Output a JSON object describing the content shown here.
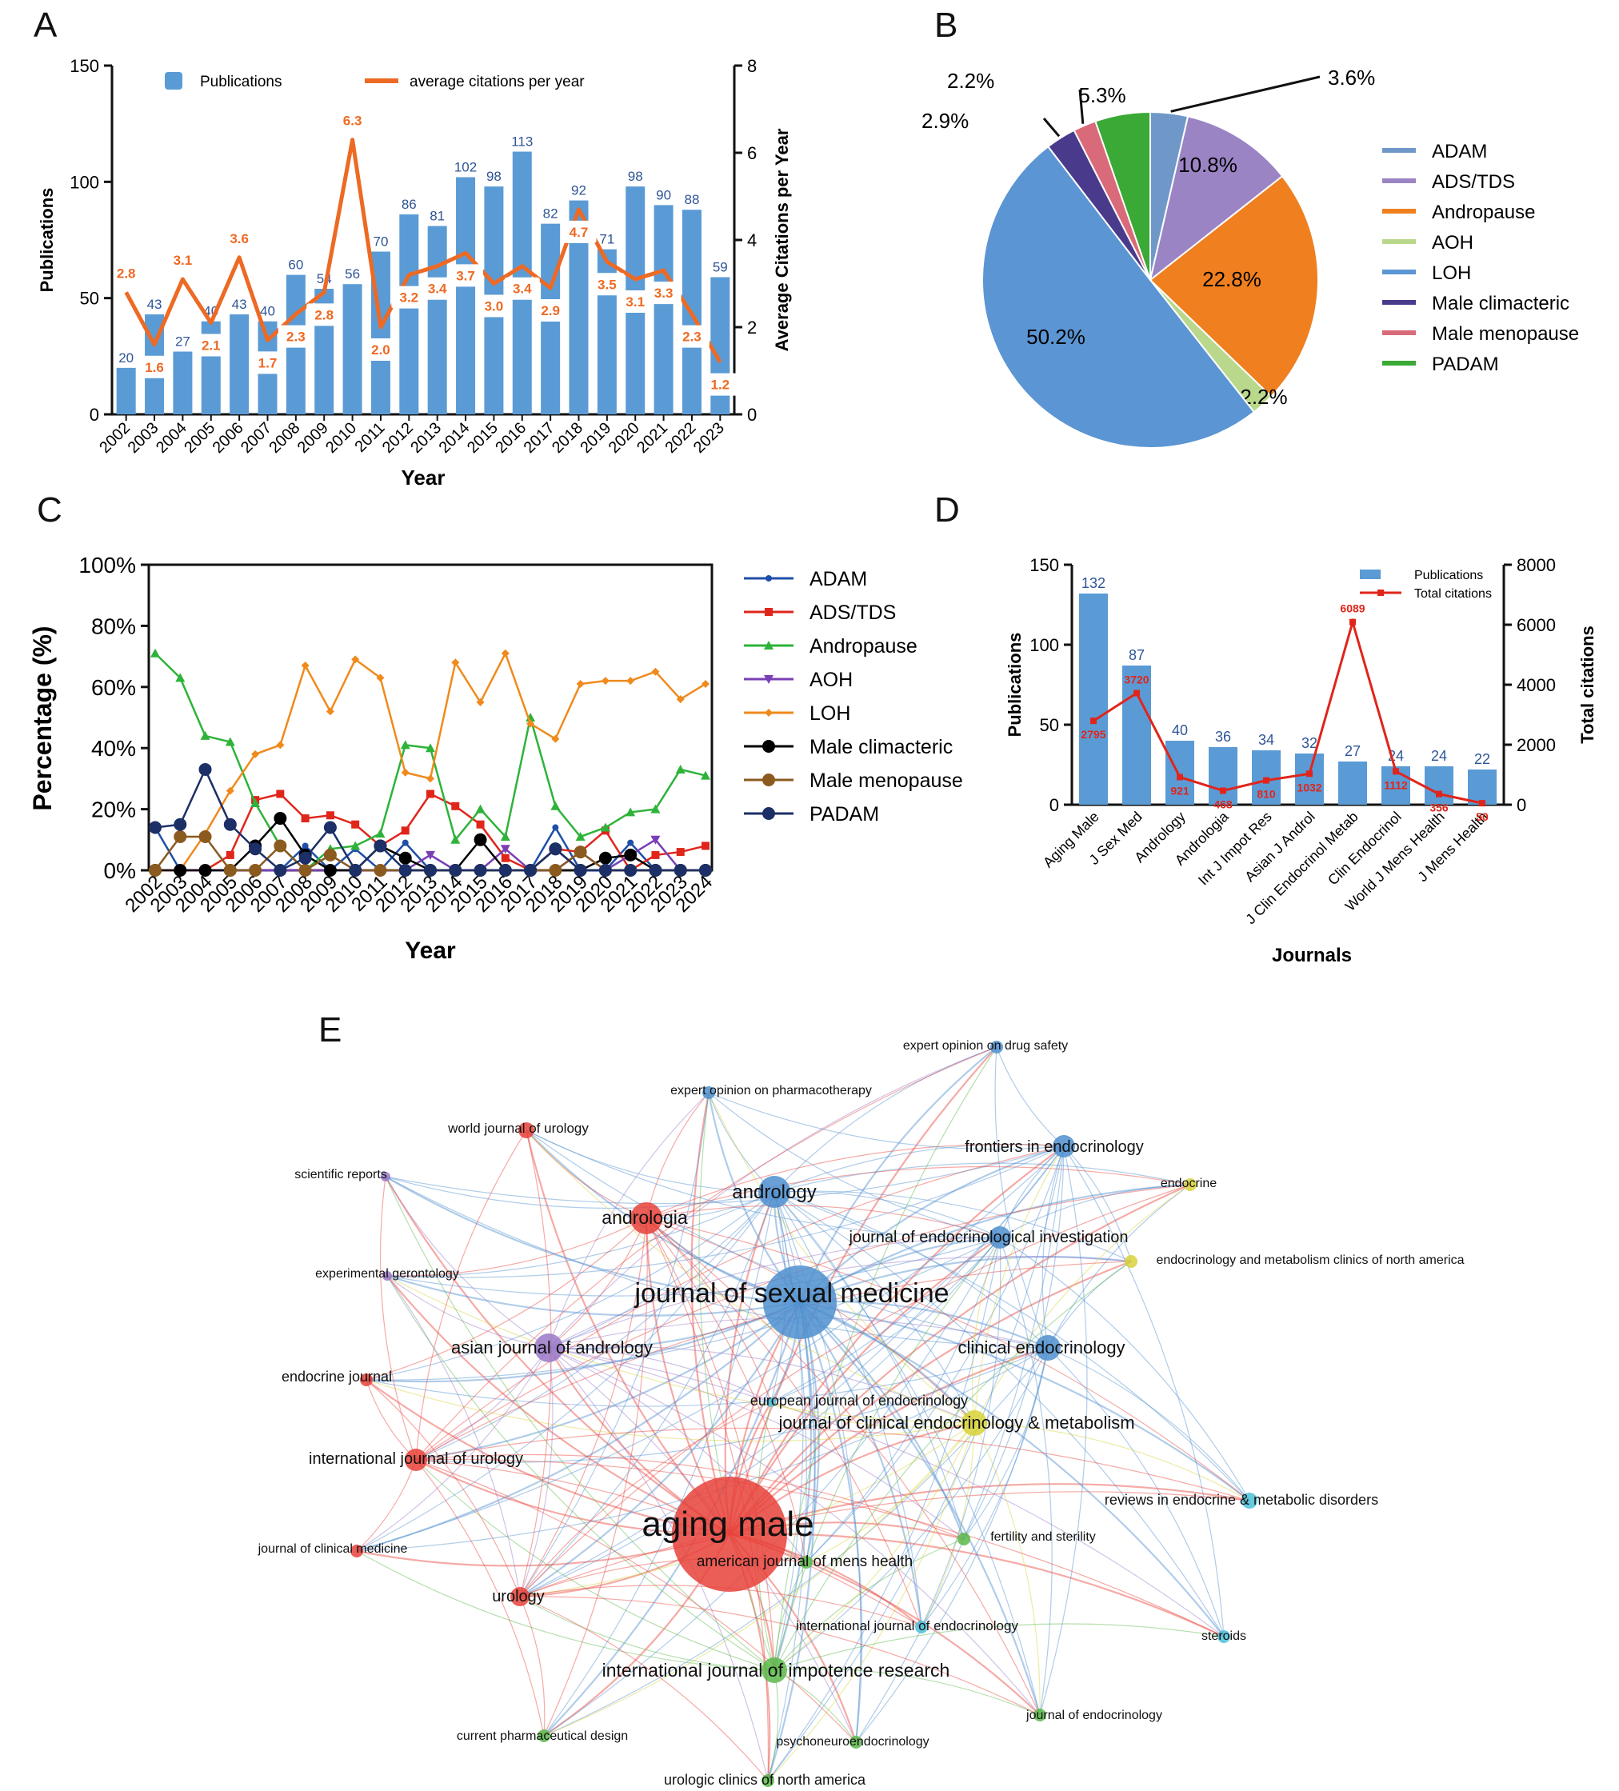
{
  "panels": {
    "a": "A",
    "b": "B",
    "c": "C",
    "d": "D",
    "e": "E"
  },
  "colors": {
    "bar_blue": "#5b9bd5",
    "line_orange": "#ed6a24",
    "count_blue": "#2f5597",
    "red": "#e0251b",
    "axis": "#111111"
  },
  "chart_data": [
    {
      "id": "A",
      "type": "bar",
      "xlabel": "Year",
      "ylabel": "Publications",
      "y2label": "Average Citations per Year",
      "ylim": [
        0,
        150
      ],
      "y2lim": [
        0,
        8
      ],
      "yticks": [
        "0",
        "50",
        "100",
        "150"
      ],
      "y2ticks": [
        "0",
        "2",
        "4",
        "6",
        "8"
      ],
      "legend": {
        "bars": "Publications",
        "line": "average citations per year",
        "position": "top"
      },
      "categories": [
        "2002",
        "2003",
        "2004",
        "2005",
        "2006",
        "2007",
        "2008",
        "2009",
        "2010",
        "2011",
        "2012",
        "2013",
        "2014",
        "2015",
        "2016",
        "2017",
        "2018",
        "2019",
        "2020",
        "2021",
        "2022",
        "2023"
      ],
      "series": [
        {
          "name": "Publications",
          "kind": "bar",
          "values": [
            20,
            43,
            27,
            40,
            43,
            40,
            60,
            54,
            56,
            70,
            86,
            81,
            102,
            98,
            113,
            82,
            92,
            71,
            98,
            90,
            88,
            59
          ]
        },
        {
          "name": "average citations per year",
          "kind": "line",
          "axis": "right",
          "values": [
            2.8,
            1.6,
            3.1,
            2.1,
            3.6,
            1.7,
            2.3,
            2.8,
            6.3,
            2.0,
            3.2,
            3.4,
            3.7,
            3.0,
            3.4,
            2.9,
            4.7,
            3.5,
            3.1,
            3.3,
            2.3,
            1.2
          ]
        }
      ],
      "labels": {
        "bars": [
          "20",
          "43",
          "27",
          "40",
          "43",
          "40",
          "60",
          "54",
          "56",
          "70",
          "86",
          "81",
          "102",
          "98",
          "113",
          "82",
          "92",
          "71",
          "98",
          "90",
          "88",
          "59"
        ],
        "line": [
          "2.8",
          "1.6",
          "3.1",
          "2.1",
          "3.6",
          "1.7",
          "2.3",
          "2.8",
          "6.3",
          "2.0",
          "3.2",
          "3.4",
          "3.7",
          "3.0",
          "3.4",
          "2.9",
          "4.7",
          "3.5",
          "3.1",
          "3.3",
          "2.3",
          "1.2"
        ]
      }
    },
    {
      "id": "B",
      "type": "pie",
      "slices": [
        {
          "name": "ADAM",
          "value": 3.6,
          "label": "3.6%",
          "color": "#6f98c9"
        },
        {
          "name": "ADS/TDS",
          "value": 10.8,
          "label": "10.8%",
          "color": "#9b84c4"
        },
        {
          "name": "Andropause",
          "value": 22.8,
          "label": "22.8%",
          "color": "#ef7f1f"
        },
        {
          "name": "AOH",
          "value": 2.2,
          "label": "2.2%",
          "color": "#b9d88b"
        },
        {
          "name": "LOH",
          "value": 50.2,
          "label": "50.2%",
          "color": "#5b95d3"
        },
        {
          "name": "Male climacteric",
          "value": 2.9,
          "label": "2.9%",
          "color": "#4a3a8c"
        },
        {
          "name": "Male menopause",
          "value": 2.2,
          "label": "2.2%",
          "color": "#d96a7a"
        },
        {
          "name": "PADAM",
          "value": 5.3,
          "label": "5.3%",
          "color": "#3aa935"
        }
      ],
      "legend_position": "right"
    },
    {
      "id": "C",
      "type": "line",
      "xlabel": "Year",
      "ylabel": "Percentage (%)",
      "ylim": [
        0,
        100
      ],
      "yticks": [
        "0%",
        "20%",
        "40%",
        "60%",
        "80%",
        "100%"
      ],
      "legend_position": "right",
      "x": [
        "2002",
        "2003",
        "2004",
        "2005",
        "2006",
        "2007",
        "2008",
        "2009",
        "2010",
        "2011",
        "2012",
        "2013",
        "2014",
        "2015",
        "2016",
        "2017",
        "2018",
        "2019",
        "2020",
        "2021",
        "2022",
        "2023",
        "2024"
      ],
      "series": [
        {
          "name": "ADAM",
          "color": "#1f4fa8",
          "marker": "circle-small",
          "values": [
            14,
            0,
            0,
            0,
            0,
            0,
            8,
            0,
            7,
            0,
            9,
            0,
            0,
            0,
            0,
            0,
            14,
            0,
            0,
            9,
            0,
            0,
            0
          ]
        },
        {
          "name": "ADS/TDS",
          "color": "#e0251b",
          "marker": "square",
          "values": [
            0,
            0,
            0,
            5,
            23,
            25,
            17,
            18,
            15,
            8,
            13,
            25,
            21,
            15,
            4,
            0,
            7,
            6,
            13,
            0,
            5,
            6,
            8
          ]
        },
        {
          "name": "Andropause",
          "color": "#2eb33a",
          "marker": "triangle",
          "values": [
            71,
            63,
            44,
            42,
            22,
            8,
            0,
            7,
            8,
            12,
            41,
            40,
            10,
            20,
            11,
            50,
            21,
            11,
            14,
            19,
            20,
            33,
            31
          ]
        },
        {
          "name": "AOH",
          "color": "#7b3fb5",
          "marker": "triangle-down",
          "values": [
            0,
            0,
            0,
            0,
            0,
            0,
            0,
            0,
            0,
            0,
            0,
            5,
            0,
            0,
            7,
            0,
            0,
            6,
            0,
            5,
            10,
            0,
            0
          ]
        },
        {
          "name": "LOH",
          "color": "#f08a1c",
          "marker": "diamond",
          "values": [
            0,
            0,
            12,
            26,
            38,
            41,
            67,
            52,
            69,
            63,
            32,
            30,
            68,
            55,
            71,
            48,
            43,
            61,
            62,
            62,
            65,
            56,
            61
          ]
        },
        {
          "name": "Male climacteric",
          "color": "#000000",
          "marker": "circle-large",
          "values": [
            0,
            0,
            0,
            0,
            8,
            17,
            5,
            0,
            0,
            8,
            4,
            0,
            0,
            10,
            0,
            0,
            7,
            0,
            4,
            5,
            0,
            0,
            0
          ]
        },
        {
          "name": "Male menopause",
          "color": "#8a5a1e",
          "marker": "circle-large",
          "values": [
            0,
            11,
            11,
            0,
            0,
            8,
            0,
            5,
            0,
            0,
            0,
            0,
            0,
            0,
            0,
            0,
            0,
            6,
            0,
            0,
            0,
            0,
            0
          ]
        },
        {
          "name": "PADAM",
          "color": "#1c2f66",
          "marker": "circle-large",
          "values": [
            14,
            15,
            33,
            15,
            7,
            0,
            4,
            14,
            0,
            8,
            0,
            0,
            0,
            0,
            0,
            0,
            7,
            0,
            0,
            0,
            0,
            0,
            0
          ]
        }
      ]
    },
    {
      "id": "D",
      "type": "bar",
      "xlabel": "Journals",
      "ylabel": "Publications",
      "y2label": "Total citations",
      "ylim": [
        0,
        150
      ],
      "y2lim": [
        0,
        8000
      ],
      "yticks": [
        "0",
        "50",
        "100",
        "150"
      ],
      "y2ticks": [
        "0",
        "2000",
        "4000",
        "6000",
        "8000"
      ],
      "legend": {
        "bars": "Publications",
        "line": "Total citations",
        "position": "top-right"
      },
      "categories": [
        "Aging Male",
        "J Sex Med",
        "Andrology",
        "Andrologia",
        "Int J Impot Res",
        "Asian J Androl",
        "J Clin Endocrinol Metab",
        "Clin Endocrinol",
        "World J Mens Health",
        "J Mens Health"
      ],
      "series": [
        {
          "name": "Publications",
          "kind": "bar",
          "values": [
            132,
            87,
            40,
            36,
            34,
            32,
            27,
            24,
            24,
            22
          ]
        },
        {
          "name": "Total citations",
          "kind": "line",
          "axis": "right",
          "values": [
            2795,
            3720,
            921,
            468,
            810,
            1032,
            6089,
            1112,
            356,
            50
          ]
        }
      ],
      "labels": {
        "bars": [
          "132",
          "87",
          "40",
          "36",
          "34",
          "32",
          "27",
          "24",
          "24",
          "22"
        ],
        "line": [
          "2795",
          "3720",
          "921",
          "468",
          "810",
          "1032",
          "6089",
          "1112",
          "356",
          "50"
        ]
      }
    },
    {
      "id": "E",
      "type": "network",
      "nodes": [
        {
          "label": "aging male",
          "cluster": "red",
          "size": "largest"
        },
        {
          "label": "journal of sexual medicine",
          "cluster": "blue",
          "size": "large"
        },
        {
          "label": "andrology",
          "cluster": "blue"
        },
        {
          "label": "andrologia",
          "cluster": "red"
        },
        {
          "label": "asian journal of andrology",
          "cluster": "purple"
        },
        {
          "label": "clinical endocrinology",
          "cluster": "blue"
        },
        {
          "label": "journal of clinical endocrinology & metabolism",
          "cluster": "yellow"
        },
        {
          "label": "international journal of impotence research",
          "cluster": "green"
        },
        {
          "label": "international journal of urology",
          "cluster": "red"
        },
        {
          "label": "journal of endocrinological investigation",
          "cluster": "blue"
        },
        {
          "label": "frontiers in endocrinology",
          "cluster": "blue"
        },
        {
          "label": "expert opinion on drug safety",
          "cluster": "blue"
        },
        {
          "label": "expert opinion on pharmacotherapy",
          "cluster": "blue"
        },
        {
          "label": "world journal of urology",
          "cluster": "red"
        },
        {
          "label": "scientific reports",
          "cluster": "purple"
        },
        {
          "label": "experimental gerontology",
          "cluster": "purple"
        },
        {
          "label": "endocrine journal",
          "cluster": "red"
        },
        {
          "label": "journal of clinical medicine",
          "cluster": "red"
        },
        {
          "label": "urology",
          "cluster": "red"
        },
        {
          "label": "endocrine",
          "cluster": "yellow"
        },
        {
          "label": "endocrinology and metabolism clinics of north america",
          "cluster": "yellow"
        },
        {
          "label": "european journal of endocrinology",
          "cluster": "cyan"
        },
        {
          "label": "reviews in endocrine & metabolic disorders",
          "cluster": "cyan"
        },
        {
          "label": "fertility and sterility",
          "cluster": "green"
        },
        {
          "label": "american journal of mens health",
          "cluster": "green"
        },
        {
          "label": "international journal of endocrinology",
          "cluster": "cyan"
        },
        {
          "label": "steroids",
          "cluster": "cyan"
        },
        {
          "label": "journal of endocrinology",
          "cluster": "green"
        },
        {
          "label": "current pharmaceutical design",
          "cluster": "green"
        },
        {
          "label": "psychoneuroendocrinology",
          "cluster": "green"
        },
        {
          "label": "urologic clinics of north america",
          "cluster": "green"
        }
      ]
    }
  ]
}
